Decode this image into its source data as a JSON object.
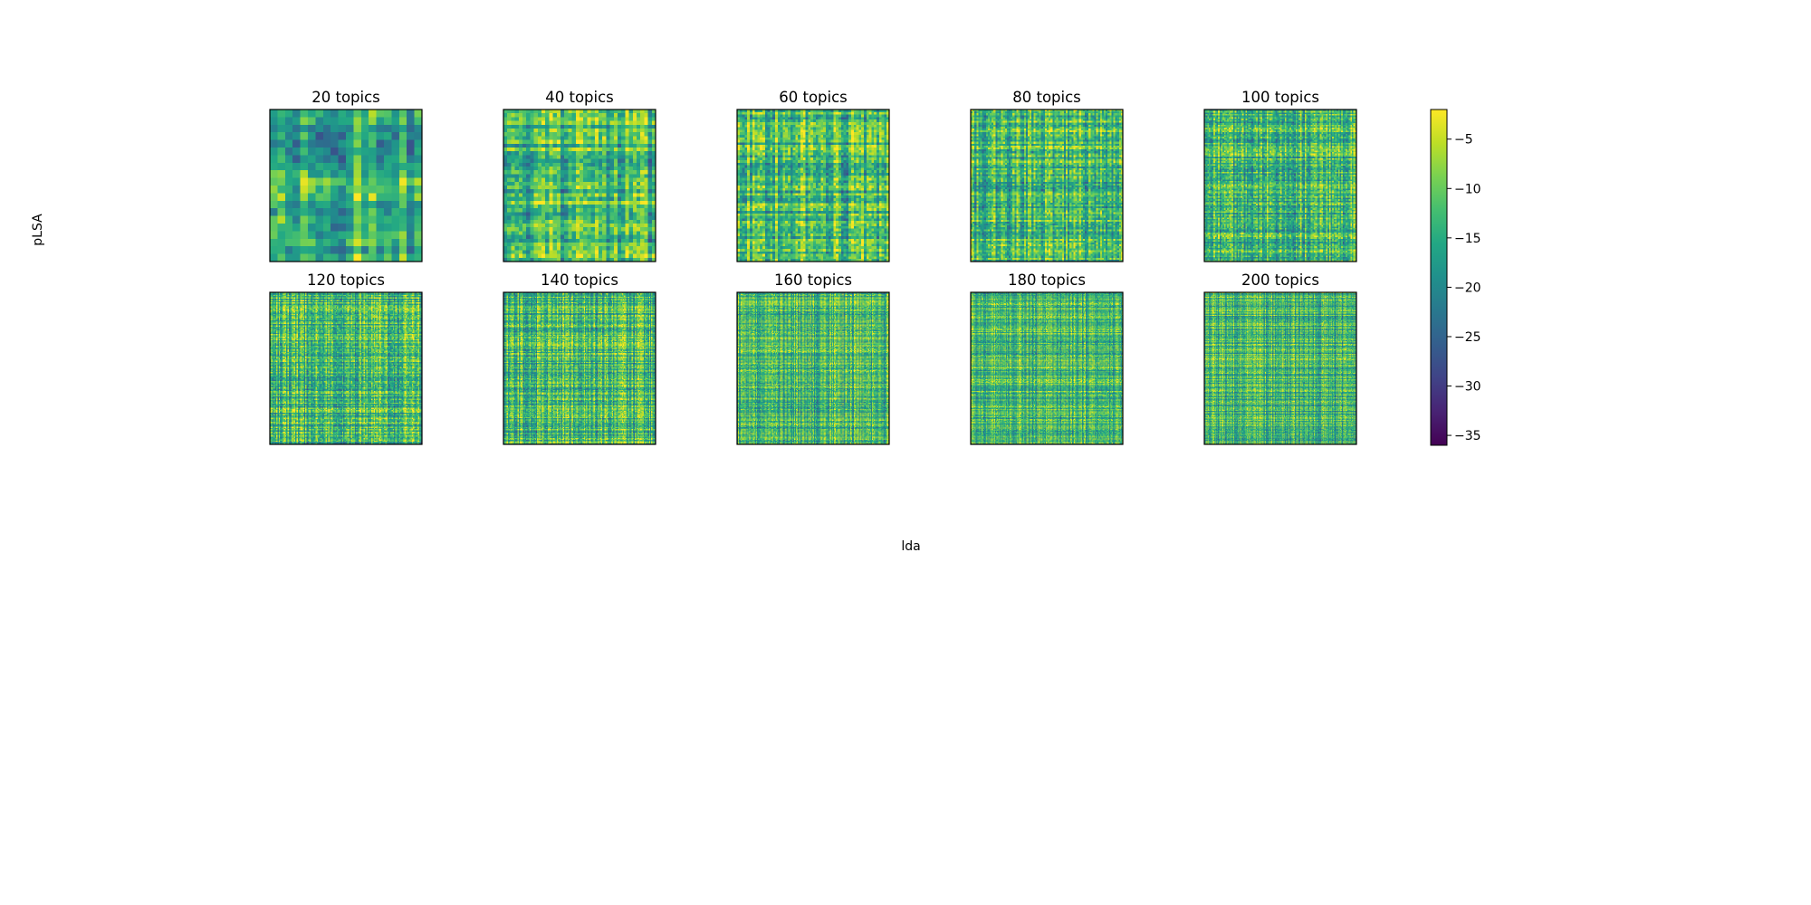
{
  "chart_data": {
    "type": "heatmap",
    "colormap": "viridis",
    "figure_labels": {
      "xlabel": "lda",
      "ylabel": "pLSA"
    },
    "panels": [
      {
        "title": "20 topics",
        "n": 20,
        "grid": {
          "rows": 20,
          "cols": 20
        }
      },
      {
        "title": "40 topics",
        "n": 40,
        "grid": {
          "rows": 40,
          "cols": 40
        }
      },
      {
        "title": "60 topics",
        "n": 60,
        "grid": {
          "rows": 60,
          "cols": 60
        }
      },
      {
        "title": "80 topics",
        "n": 80,
        "grid": {
          "rows": 80,
          "cols": 80
        }
      },
      {
        "title": "100 topics",
        "n": 100,
        "grid": {
          "rows": 100,
          "cols": 100
        }
      },
      {
        "title": "120 topics",
        "n": 120,
        "grid": {
          "rows": 120,
          "cols": 120
        }
      },
      {
        "title": "140 topics",
        "n": 140,
        "grid": {
          "rows": 140,
          "cols": 140
        }
      },
      {
        "title": "160 topics",
        "n": 160,
        "grid": {
          "rows": 160,
          "cols": 160
        }
      },
      {
        "title": "180 topics",
        "n": 180,
        "grid": {
          "rows": 180,
          "cols": 180
        }
      },
      {
        "title": "200 topics",
        "n": 200,
        "grid": {
          "rows": 200,
          "cols": 200
        }
      }
    ],
    "colorbar": {
      "range": [
        -36,
        -2
      ],
      "ticks": [
        -5,
        -10,
        -15,
        -20,
        -25,
        -30,
        -35
      ],
      "tick_labels": [
        "−5",
        "−10",
        "−15",
        "−20",
        "−25",
        "−30",
        "−35"
      ]
    },
    "value_distribution": {
      "typical_min": -30,
      "typical_max": -3,
      "mean": -13
    }
  }
}
